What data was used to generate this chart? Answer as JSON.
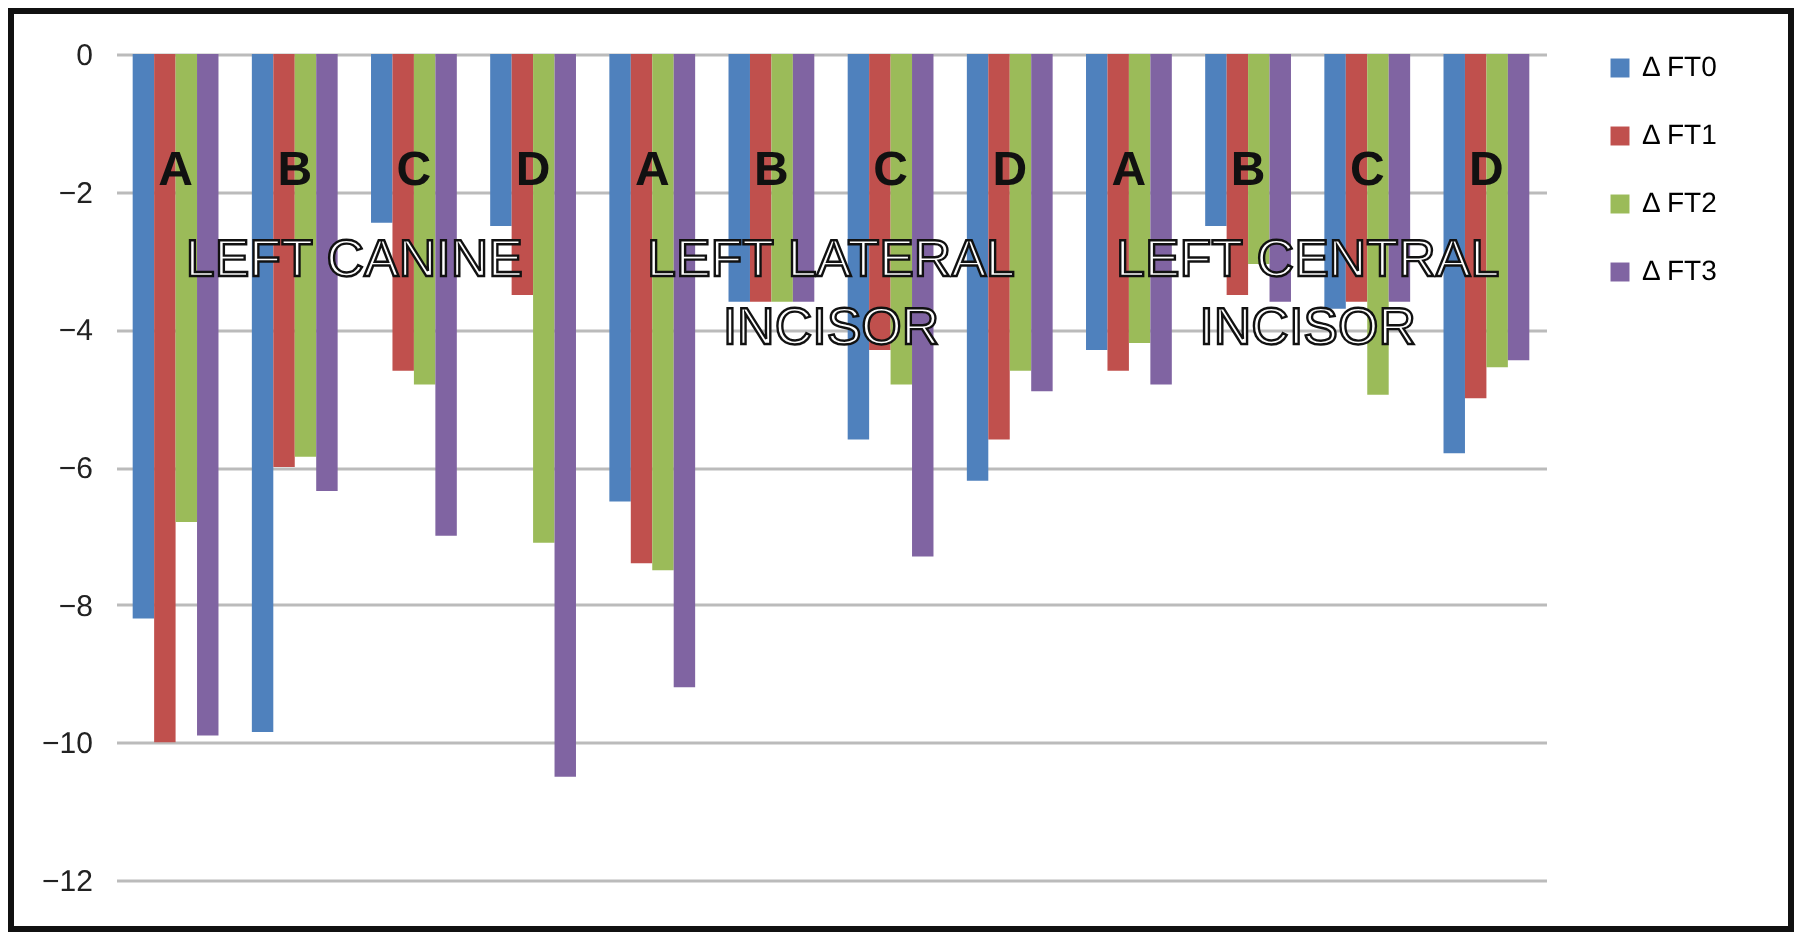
{
  "chart_data": {
    "type": "bar",
    "categories": [
      "A",
      "B",
      "C",
      "D",
      "A",
      "B",
      "C",
      "D",
      "A",
      "B",
      "C",
      "D"
    ],
    "series": [
      {
        "name": "Δ FT0",
        "color": "#4f81bd",
        "values": [
          -8.2,
          -9.85,
          -2.45,
          -2.5,
          -6.5,
          -3.6,
          -5.6,
          -6.2,
          -4.3,
          -2.5,
          -3.7,
          -5.8
        ]
      },
      {
        "name": "Δ FT1",
        "color": "#c0504d",
        "values": [
          -10.0,
          -6.0,
          -4.6,
          -3.5,
          -7.4,
          -3.6,
          -4.3,
          -5.6,
          -4.6,
          -3.5,
          -3.6,
          -5.0
        ]
      },
      {
        "name": "Δ FT2",
        "color": "#9bbb59",
        "values": [
          -6.8,
          -5.85,
          -4.8,
          -7.1,
          -7.5,
          -3.6,
          -4.8,
          -4.6,
          -4.2,
          -3.05,
          -4.95,
          -4.55
        ]
      },
      {
        "name": "Δ FT3",
        "color": "#8064a2",
        "values": [
          -9.9,
          -6.35,
          -7.0,
          -10.5,
          -9.2,
          -3.6,
          -7.3,
          -4.9,
          -4.8,
          -3.6,
          -3.6,
          -4.45
        ]
      }
    ],
    "annotations": [
      "LEFT CANINE",
      "LEFT LATERAL INCISOR",
      "LEFT CENTRAL INCISOR"
    ],
    "ylim": [
      -12,
      0
    ],
    "yticks": [
      0,
      -2,
      -4,
      -6,
      -8,
      -10,
      -12
    ],
    "grid": "y",
    "legend": "right"
  }
}
